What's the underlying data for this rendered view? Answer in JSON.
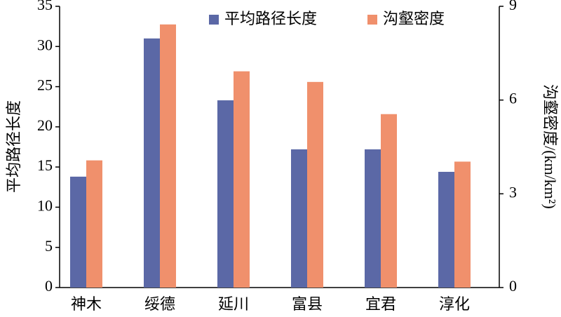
{
  "chart_data": {
    "type": "bar",
    "categories": [
      "神木",
      "绥德",
      "延川",
      "富县",
      "宜君",
      "淳化"
    ],
    "series": [
      {
        "name": "平均路径长度",
        "color": "#5b68a6",
        "values": [
          13.8,
          31.0,
          23.3,
          17.2,
          17.2,
          14.4
        ]
      },
      {
        "name": "沟壑密度",
        "color": "#f0906c",
        "axis": "y2",
        "values": [
          4.07,
          8.42,
          6.92,
          6.58,
          5.55,
          4.03
        ]
      }
    ],
    "ylabel": "平均路径长度",
    "y2label": "沟壑密度/(km/km²)",
    "ylim": [
      0,
      35
    ],
    "yticks": [
      0,
      5,
      10,
      15,
      20,
      25,
      30,
      35
    ],
    "y2lim": [
      0,
      9
    ],
    "y2ticks": [
      0,
      3,
      6,
      9
    ],
    "legend": "top"
  }
}
